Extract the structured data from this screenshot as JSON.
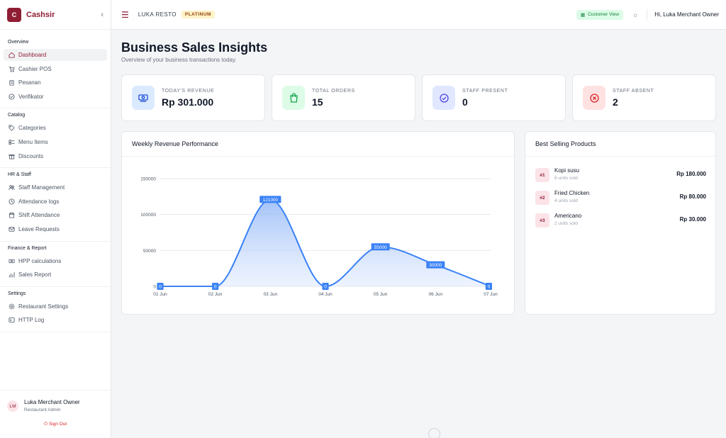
{
  "app": {
    "logo_letter": "C",
    "name": "Cashsir",
    "collapse_icon": "chevron-left-icon"
  },
  "sidebar": {
    "sections": [
      {
        "title": "Overview",
        "items": [
          {
            "label": "Dashboard",
            "icon": "home-icon",
            "active": true
          },
          {
            "label": "Cashier POS",
            "icon": "cart-icon"
          },
          {
            "label": "Pesanan",
            "icon": "clipboard-icon"
          },
          {
            "label": "Verifikator",
            "icon": "check-circle-icon"
          }
        ]
      },
      {
        "title": "Catalog",
        "items": [
          {
            "label": "Categories",
            "icon": "tag-icon"
          },
          {
            "label": "Menu Items",
            "icon": "menu-list-icon"
          },
          {
            "label": "Discounts",
            "icon": "gift-icon"
          }
        ]
      },
      {
        "title": "HR & Staff",
        "items": [
          {
            "label": "Staff Management",
            "icon": "users-icon"
          },
          {
            "label": "Attendance logs",
            "icon": "clock-icon"
          },
          {
            "label": "Shift Attendance",
            "icon": "calendar-icon"
          },
          {
            "label": "Leave Requests",
            "icon": "mail-icon"
          }
        ]
      },
      {
        "title": "Finance & Report",
        "items": [
          {
            "label": "HPP calculations",
            "icon": "money-icon"
          },
          {
            "label": "Sales Report",
            "icon": "bar-chart-icon"
          }
        ]
      },
      {
        "title": "Settings",
        "items": [
          {
            "label": "Restaurant Settings",
            "icon": "gear-icon"
          },
          {
            "label": "HTTP Log",
            "icon": "terminal-icon"
          }
        ]
      }
    ],
    "user": {
      "initials": "LM",
      "name": "Luka Merchant Owner",
      "role": "Restaurant Admin",
      "sign_out": "Sign Out"
    }
  },
  "topbar": {
    "restaurant": "LUKA RESTO",
    "plan_badge": "PLATINUM",
    "customer_view": "Customer View",
    "greeting": "Hi, Luka Merchant Owner"
  },
  "page": {
    "title": "Business Sales Insights",
    "subtitle": "Overview of your business transactions today."
  },
  "stats": [
    {
      "label": "TODAY'S REVENUE",
      "value": "Rp 301.000",
      "icon": "cash-icon",
      "bg": "#dbeafe",
      "fg": "#1d4ed8"
    },
    {
      "label": "TOTAL ORDERS",
      "value": "15",
      "icon": "shopping-bag-icon",
      "bg": "#dcfce7",
      "fg": "#16a34a"
    },
    {
      "label": "STAFF PRESENT",
      "value": "0",
      "icon": "check-circle-icon",
      "bg": "#e0e7ff",
      "fg": "#4f46e5"
    },
    {
      "label": "STAFF ABSENT",
      "value": "2",
      "icon": "x-circle-icon",
      "bg": "#fee2e2",
      "fg": "#dc2626"
    }
  ],
  "weekly": {
    "title": "Weekly Revenue Performance"
  },
  "chart_data": {
    "type": "area",
    "title": "Weekly Revenue Performance",
    "categories": [
      "01 Jun",
      "02 Jun",
      "03 Jun",
      "04 Jun",
      "05 Jun",
      "06 Jun",
      "07 Jun"
    ],
    "values": [
      0,
      0,
      121000,
      0,
      55000,
      30000,
      0
    ],
    "data_labels": [
      "0",
      "0",
      "121000",
      "0",
      "55000",
      "30000",
      "0"
    ],
    "yticks": [
      0,
      50000,
      100000,
      150000
    ],
    "ytick_labels": [
      "0",
      "50000",
      "100000",
      "150000"
    ],
    "ylim": [
      0,
      150000
    ],
    "grid": true,
    "color": "#3b82f6"
  },
  "best_selling": {
    "title": "Best Selling Products",
    "items": [
      {
        "rank": "#1",
        "name": "Kopi susu",
        "sold": "6 units sold",
        "price": "Rp 180.000"
      },
      {
        "rank": "#2",
        "name": "Fried Chicken",
        "sold": "4 units sold",
        "price": "Rp 80.000"
      },
      {
        "rank": "#3",
        "name": "Americano",
        "sold": "2 units sold",
        "price": "Rp 30.000"
      }
    ]
  }
}
